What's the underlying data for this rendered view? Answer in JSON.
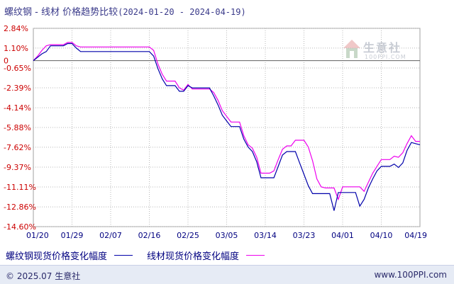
{
  "title": {
    "main": "螺纹钢 - 线材 价格趋势比较",
    "range": "(2024-01-20 - 2024-04-19)"
  },
  "watermark": {
    "text": "生意社",
    "url": "100PPI.COM"
  },
  "legend": {
    "series1": "螺纹钢现货价格变化幅度",
    "series2": "线材现货价格变化幅度"
  },
  "footer": {
    "copyright": "© 2025.07 生意社",
    "site": "www.100PPI.com"
  },
  "chart_data": {
    "type": "line",
    "yticks": [
      "2.84%",
      "1.10%",
      "0",
      "-0.65%",
      "-2.39%",
      "-4.14%",
      "-5.88%",
      "-7.62%",
      "-9.37%",
      "-11.11%",
      "-12.86%",
      "-14.60%"
    ],
    "ytick_values": [
      2.84,
      1.1,
      0,
      -0.65,
      -2.39,
      -4.14,
      -5.88,
      -7.62,
      -9.37,
      -11.11,
      -12.86,
      -14.6
    ],
    "ylim": [
      -14.6,
      2.84
    ],
    "xticks": [
      "01/20",
      "01/29",
      "02/07",
      "02/16",
      "02/25",
      "03/05",
      "03/14",
      "03/23",
      "04/01",
      "04/10",
      "04/19"
    ],
    "xtick_days": [
      0,
      9,
      18,
      27,
      36,
      45,
      54,
      63,
      72,
      81,
      90
    ],
    "grid": true,
    "colors": {
      "series1": "#0000aa",
      "series2": "#ee00ee",
      "grid": "#b8b8b8",
      "ylabel": "#cc0000",
      "xlabel": "#000080"
    },
    "series": [
      {
        "name": "螺纹钢现货价格变化幅度",
        "x": [
          0,
          1,
          2,
          3,
          4,
          5,
          6,
          7,
          8,
          9,
          10,
          11,
          12,
          13,
          14,
          15,
          16,
          17,
          18,
          19,
          20,
          21,
          22,
          23,
          24,
          25,
          26,
          27,
          28,
          29,
          30,
          31,
          32,
          33,
          34,
          35,
          36,
          37,
          38,
          39,
          40,
          41,
          42,
          43,
          44,
          45,
          46,
          47,
          48,
          49,
          50,
          51,
          52,
          53,
          54,
          55,
          56,
          57,
          58,
          59,
          60,
          61,
          62,
          63,
          64,
          65,
          66,
          67,
          68,
          69,
          70,
          71,
          72,
          73,
          74,
          75,
          76,
          77,
          78,
          79,
          80,
          81,
          82,
          83,
          84,
          85,
          86,
          87,
          88,
          89,
          90
        ],
        "values": [
          0,
          0.3,
          0.6,
          0.8,
          1.3,
          1.3,
          1.3,
          1.3,
          1.5,
          1.5,
          1.1,
          0.8,
          0.8,
          0.8,
          0.8,
          0.8,
          0.8,
          0.8,
          0.8,
          0.8,
          0.8,
          0.8,
          0.8,
          0.8,
          0.8,
          0.8,
          0.8,
          0.8,
          0.4,
          -0.7,
          -1.6,
          -2.2,
          -2.2,
          -2.2,
          -2.7,
          -2.7,
          -2.2,
          -2.4,
          -2.4,
          -2.4,
          -2.4,
          -2.4,
          -3.1,
          -3.9,
          -4.8,
          -5.3,
          -5.8,
          -5.8,
          -5.8,
          -6.9,
          -7.6,
          -8.0,
          -8.9,
          -10.3,
          -10.3,
          -10.3,
          -10.3,
          -9.3,
          -8.3,
          -8.0,
          -8.0,
          -8.0,
          -9.0,
          -10.0,
          -11.0,
          -11.7,
          -11.7,
          -11.7,
          -11.7,
          -11.7,
          -13.2,
          -11.6,
          -11.6,
          -11.6,
          -11.6,
          -11.6,
          -12.8,
          -12.2,
          -11.2,
          -10.4,
          -9.7,
          -9.3,
          -9.3,
          -9.3,
          -9.1,
          -9.4,
          -9.0,
          -7.9,
          -7.2,
          -7.3,
          -7.4
        ],
        "color": "#0000aa"
      },
      {
        "name": "线材现货价格变化幅度",
        "x": [
          0,
          1,
          2,
          3,
          4,
          5,
          6,
          7,
          8,
          9,
          10,
          11,
          12,
          13,
          14,
          15,
          16,
          17,
          18,
          19,
          20,
          21,
          22,
          23,
          24,
          25,
          26,
          27,
          28,
          29,
          30,
          31,
          32,
          33,
          34,
          35,
          36,
          37,
          38,
          39,
          40,
          41,
          42,
          43,
          44,
          45,
          46,
          47,
          48,
          49,
          50,
          51,
          52,
          53,
          54,
          55,
          56,
          57,
          58,
          59,
          60,
          61,
          62,
          63,
          64,
          65,
          66,
          67,
          68,
          69,
          70,
          71,
          72,
          73,
          74,
          75,
          76,
          77,
          78,
          79,
          80,
          81,
          82,
          83,
          84,
          85,
          86,
          87,
          88,
          89,
          90
        ],
        "values": [
          0,
          0.4,
          0.9,
          1.3,
          1.4,
          1.4,
          1.4,
          1.4,
          1.6,
          1.6,
          1.3,
          1.2,
          1.2,
          1.2,
          1.2,
          1.2,
          1.2,
          1.2,
          1.2,
          1.2,
          1.2,
          1.2,
          1.2,
          1.2,
          1.2,
          1.2,
          1.2,
          1.2,
          0.9,
          -0.3,
          -1.2,
          -1.8,
          -1.8,
          -1.8,
          -2.4,
          -2.6,
          -2.1,
          -2.5,
          -2.5,
          -2.5,
          -2.5,
          -2.5,
          -2.8,
          -3.5,
          -4.4,
          -4.9,
          -5.4,
          -5.4,
          -5.4,
          -6.6,
          -7.4,
          -7.7,
          -8.5,
          -9.9,
          -9.9,
          -9.9,
          -9.7,
          -8.7,
          -7.8,
          -7.5,
          -7.5,
          -7.0,
          -7.0,
          -7.0,
          -7.6,
          -8.8,
          -10.4,
          -11.1,
          -11.2,
          -11.2,
          -11.2,
          -12.2,
          -11.1,
          -11.1,
          -11.1,
          -11.1,
          -11.1,
          -11.5,
          -10.7,
          -9.9,
          -9.3,
          -8.7,
          -8.7,
          -8.7,
          -8.4,
          -8.5,
          -8.1,
          -7.3,
          -6.6,
          -7.1,
          -7.1
        ],
        "color": "#ee00ee"
      }
    ]
  }
}
